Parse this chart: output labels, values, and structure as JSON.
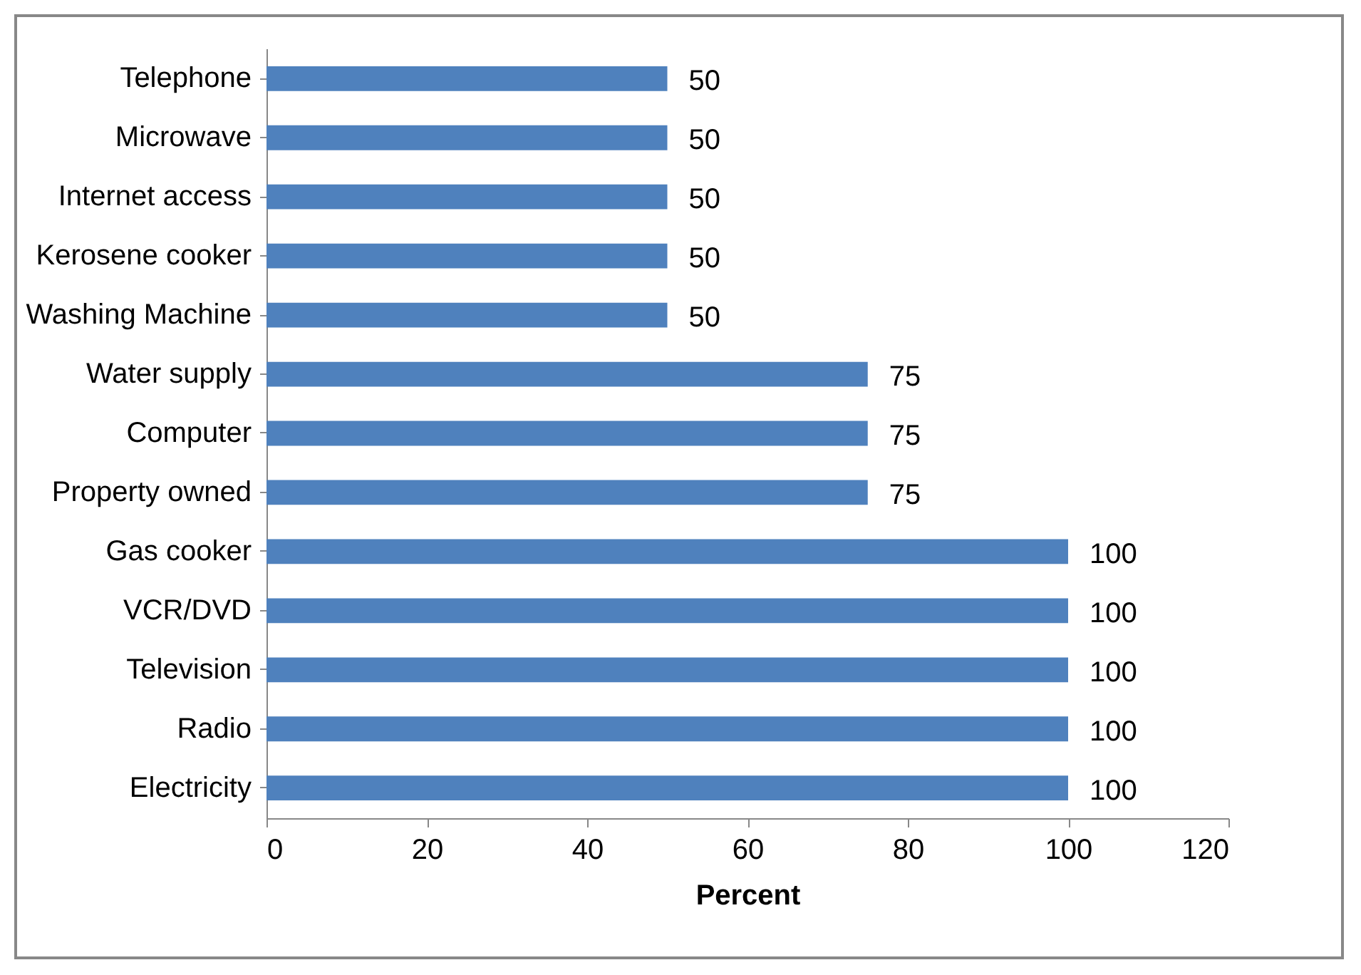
{
  "chart_data": {
    "type": "bar",
    "orientation": "horizontal",
    "xlabel": "Percent",
    "categories": [
      "Telephone",
      "Microwave",
      "Internet access",
      "Kerosene cooker",
      "Washing Machine",
      "Water supply",
      "Computer",
      "Property owned",
      "Gas cooker",
      "VCR/DVD",
      "Television",
      "Radio",
      "Electricity"
    ],
    "values": [
      50,
      50,
      50,
      50,
      50,
      75,
      75,
      75,
      100,
      100,
      100,
      100,
      100
    ],
    "color": "#4f81bd",
    "xlim": [
      0,
      120
    ],
    "xticks": [
      0,
      20,
      40,
      60,
      80,
      100,
      120
    ],
    "data_labels": true,
    "grid": false
  }
}
